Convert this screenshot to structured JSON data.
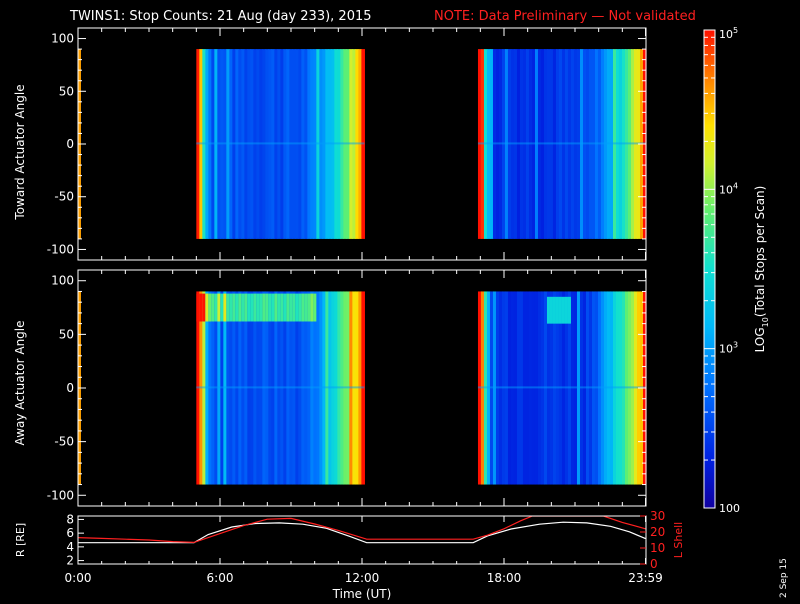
{
  "title": {
    "main": "TWINS1: Stop Counts: 21 Aug (day 233), 2015",
    "note": "NOTE: Data Preliminary — Not validated",
    "main_color": "#ffffff",
    "note_color": "#ff2020"
  },
  "stamp": "2 Sep 15",
  "chart_data": [
    {
      "type": "heatmap",
      "name": "toward-panel",
      "title": "",
      "ylabel": "Toward Actuator Angle",
      "xlabel": "",
      "xlim_hours": [
        0,
        24
      ],
      "ylim": [
        -110,
        110
      ],
      "yticks": [
        100,
        50,
        0,
        -50,
        -100
      ],
      "angle_range": [
        -90,
        90
      ],
      "segments": [
        {
          "start": 0.0,
          "end": 0.1,
          "level": [
            2.8,
            4.6
          ]
        },
        {
          "start": 5.0,
          "end": 12.1,
          "level": [
            2.45,
            4.7
          ]
        },
        {
          "start": 16.9,
          "end": 24.0,
          "level": [
            2.3,
            4.7
          ]
        }
      ]
    },
    {
      "type": "heatmap",
      "name": "away-panel",
      "title": "",
      "ylabel": "Away Actuator Angle",
      "xlabel": "",
      "xlim_hours": [
        0,
        24
      ],
      "ylim": [
        -110,
        110
      ],
      "yticks": [
        100,
        50,
        0,
        -50,
        -100
      ],
      "angle_range": [
        -90,
        90
      ],
      "segments": [
        {
          "start": 0.0,
          "end": 0.1,
          "level": [
            2.8,
            4.6
          ]
        },
        {
          "start": 5.0,
          "end": 12.1,
          "level": [
            2.45,
            4.85
          ]
        },
        {
          "start": 16.9,
          "end": 24.0,
          "level": [
            2.3,
            4.85
          ]
        }
      ]
    },
    {
      "type": "line",
      "name": "orbit-panel",
      "title": "",
      "xlabel": "Time (UT)",
      "ylabel_left": "R [RE]",
      "ylabel_right": "L Shell",
      "xlim_hours": [
        0,
        24
      ],
      "ylim_left": [
        1.5,
        8.5
      ],
      "ylim_right": [
        0,
        30
      ],
      "yticks_left": [
        2,
        4,
        6,
        8
      ],
      "yticks_right": [
        0,
        10,
        20,
        30
      ],
      "xticks": [
        "0:00",
        "6:00",
        "12:00",
        "18:00",
        "23:59"
      ],
      "xtick_hours": [
        0,
        6,
        12,
        18,
        23.98
      ],
      "series": [
        {
          "name": "R",
          "color": "#ffffff",
          "x": [
            0,
            1,
            2,
            3,
            4,
            4.9,
            5.5,
            6.5,
            7.5,
            8.5,
            9.5,
            10.5,
            11.5,
            12.2,
            13,
            14,
            15,
            16,
            16.7,
            17.3,
            18.3,
            19.5,
            20.5,
            21.5,
            22.5,
            23.3,
            23.98
          ],
          "y": [
            4.6,
            4.6,
            4.6,
            4.6,
            4.6,
            4.6,
            5.8,
            6.9,
            7.4,
            7.5,
            7.3,
            6.7,
            5.5,
            4.6,
            4.6,
            4.6,
            4.6,
            4.6,
            4.6,
            5.6,
            6.6,
            7.3,
            7.6,
            7.5,
            7.0,
            6.2,
            5.2
          ]
        },
        {
          "name": "L Shell",
          "color": "#ff2020",
          "x": [
            0,
            1,
            2,
            3,
            4,
            4.9,
            6,
            7,
            8,
            9,
            10,
            11,
            12.2,
            13,
            14,
            15,
            16,
            16.7,
            17.3,
            18,
            18.7,
            19.2,
            22.2,
            23,
            23.98
          ],
          "y": [
            16.5,
            16,
            15.5,
            15,
            14,
            13.5,
            19,
            24,
            28,
            28.5,
            25,
            21,
            15.5,
            15.5,
            15.5,
            15.5,
            15.5,
            15.5,
            18,
            22,
            27,
            30,
            30,
            26,
            22
          ]
        }
      ]
    }
  ],
  "colorbar": {
    "label": "LOG10(Total Stops per Scan)",
    "label_prefix": "LOG",
    "label_sub": "10",
    "label_suffix": "(Total Stops per Scan)",
    "ticks": [
      {
        "value": 5,
        "base": "10",
        "exp": "5"
      },
      {
        "value": 4,
        "base": "10",
        "exp": "4"
      },
      {
        "value": 3,
        "base": "10",
        "exp": "3"
      },
      {
        "value": 2,
        "base": "100",
        "exp": ""
      }
    ],
    "range": [
      2,
      5
    ]
  }
}
